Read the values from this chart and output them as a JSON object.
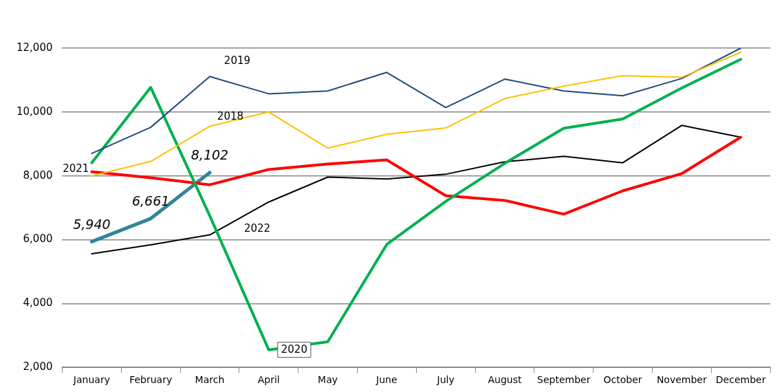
{
  "chart_data": {
    "type": "line",
    "categories": [
      "January",
      "February",
      "March",
      "April",
      "May",
      "June",
      "July",
      "August",
      "September",
      "October",
      "November",
      "December"
    ],
    "series": [
      {
        "name": "2018",
        "color": "#ffc000",
        "values": [
          8000,
          8450,
          9550,
          10000,
          8870,
          9300,
          9500,
          10420,
          10810,
          11140,
          11090,
          11870
        ]
      },
      {
        "name": "2019",
        "color": "#1f497d",
        "values": [
          8700,
          9520,
          11110,
          10570,
          10660,
          11240,
          10140,
          11030,
          10660,
          10510,
          11050,
          12000
        ]
      },
      {
        "name": "2020",
        "color": "#00b050",
        "values": [
          8410,
          10770,
          6750,
          2550,
          2800,
          5850,
          7200,
          8390,
          9490,
          9780,
          10750,
          11650
        ]
      },
      {
        "name": "2021",
        "color": "#ff0000",
        "values": [
          8130,
          7940,
          7720,
          8200,
          8370,
          8500,
          7380,
          7230,
          6800,
          7530,
          8070,
          9210
        ]
      },
      {
        "name": "2022",
        "color": "#000000",
        "values": [
          5560,
          5840,
          6150,
          7180,
          7960,
          7900,
          8050,
          8440,
          8610,
          8410,
          9580,
          9210
        ]
      },
      {
        "color": "#31849b",
        "values": [
          5940,
          6661,
          8102,
          null,
          null,
          null,
          null,
          null,
          null,
          null,
          null,
          null
        ],
        "value_labels": [
          "5,940",
          "6,661",
          "8,102",
          null,
          null,
          null,
          null,
          null,
          null,
          null,
          null,
          null
        ]
      }
    ],
    "ylim": [
      2000,
      12000
    ],
    "yticks": [
      {
        "value": 2000,
        "label": "2,000"
      },
      {
        "value": 4000,
        "label": "4,000"
      },
      {
        "value": 6000,
        "label": "6,000"
      },
      {
        "value": 8000,
        "label": "8,000"
      },
      {
        "value": 10000,
        "label": "10,000"
      },
      {
        "value": 12000,
        "label": "12,000"
      }
    ],
    "grid": "y",
    "legend": false,
    "marker": "none",
    "line_style": "solid"
  }
}
